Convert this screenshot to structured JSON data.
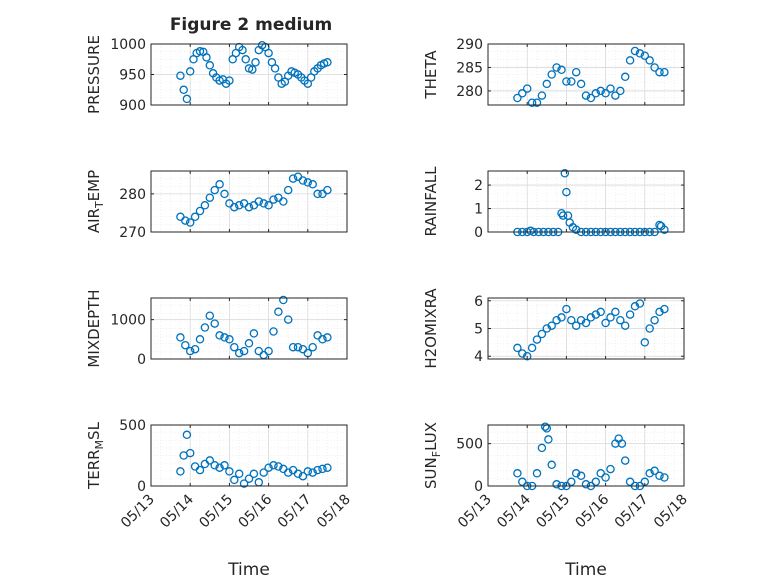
{
  "figure": {
    "title": "Figure 2 medium",
    "xlabel": "Time",
    "x_tick_labels": [
      "05/13",
      "05/14",
      "05/15",
      "05/16",
      "05/17",
      "05/18"
    ]
  },
  "colors": {
    "marker": "#0072BD",
    "axis": "#262626",
    "grid": "#d9d9d9",
    "background": "#ffffff"
  },
  "chart_data": [
    {
      "type": "scatter",
      "ylabel": "PRESSURE",
      "xlim": [
        "05/13",
        "05/18"
      ],
      "ylim": [
        900,
        1000
      ],
      "yticks": [
        900,
        950,
        1000
      ],
      "grid": true,
      "series": [
        {
          "x": [
            "05/13 18:00",
            "05/13 20:00",
            "05/13 22:00",
            "05/14 00:00",
            "05/14 02:00",
            "05/14 04:00",
            "05/14 06:00",
            "05/14 08:00",
            "05/14 10:00",
            "05/14 12:00",
            "05/14 14:00",
            "05/14 16:00",
            "05/14 18:00",
            "05/14 20:00",
            "05/14 22:00",
            "05/15 00:00",
            "05/15 02:00",
            "05/15 04:00",
            "05/15 06:00",
            "05/15 08:00",
            "05/15 10:00",
            "05/15 12:00",
            "05/15 14:00",
            "05/15 16:00",
            "05/15 18:00",
            "05/15 20:00",
            "05/15 22:00",
            "05/16 00:00",
            "05/16 02:00",
            "05/16 04:00",
            "05/16 06:00",
            "05/16 08:00",
            "05/16 10:00",
            "05/16 12:00",
            "05/16 14:00",
            "05/16 16:00",
            "05/16 18:00",
            "05/16 20:00",
            "05/16 22:00",
            "05/17 00:00",
            "05/17 02:00",
            "05/17 04:00",
            "05/17 06:00",
            "05/17 08:00",
            "05/17 10:00",
            "05/17 12:00"
          ],
          "y": [
            948,
            925,
            910,
            955,
            975,
            985,
            988,
            987,
            978,
            965,
            952,
            945,
            940,
            942,
            935,
            940,
            975,
            985,
            995,
            990,
            975,
            960,
            958,
            970,
            990,
            998,
            995,
            985,
            970,
            960,
            945,
            935,
            938,
            948,
            955,
            953,
            950,
            945,
            940,
            935,
            945,
            955,
            960,
            965,
            968,
            970
          ]
        }
      ]
    },
    {
      "type": "scatter",
      "ylabel": "THETA",
      "xlim": [
        "05/13",
        "05/18"
      ],
      "ylim": [
        277,
        290
      ],
      "yticks": [
        280,
        285,
        290
      ],
      "grid": true,
      "series": [
        {
          "x": [
            "05/13 18:00",
            "05/13 21:00",
            "05/14 00:00",
            "05/14 03:00",
            "05/14 06:00",
            "05/14 09:00",
            "05/14 12:00",
            "05/14 15:00",
            "05/14 18:00",
            "05/14 21:00",
            "05/15 00:00",
            "05/15 03:00",
            "05/15 06:00",
            "05/15 09:00",
            "05/15 12:00",
            "05/15 15:00",
            "05/15 18:00",
            "05/15 21:00",
            "05/16 00:00",
            "05/16 03:00",
            "05/16 06:00",
            "05/16 09:00",
            "05/16 12:00",
            "05/16 15:00",
            "05/16 18:00",
            "05/16 21:00",
            "05/17 00:00",
            "05/17 03:00",
            "05/17 06:00",
            "05/17 09:00",
            "05/17 12:00"
          ],
          "y": [
            278.5,
            279.5,
            280.5,
            277.5,
            277.5,
            279,
            281.5,
            283.5,
            285,
            284.5,
            282,
            282,
            284,
            281.5,
            279,
            278.5,
            279.5,
            280,
            279.5,
            280.5,
            279,
            280,
            283,
            286.5,
            288.5,
            288,
            287.5,
            286.5,
            285,
            284,
            284
          ]
        }
      ]
    },
    {
      "type": "scatter",
      "ylabel": "AIR_TEMP",
      "ylabel_main": "AIR",
      "ylabel_sub": "T",
      "ylabel_rest": "EMP",
      "xlim": [
        "05/13",
        "05/18"
      ],
      "ylim": [
        270,
        286
      ],
      "yticks": [
        270,
        280
      ],
      "grid": true,
      "series": [
        {
          "x": [
            "05/13 18:00",
            "05/13 21:00",
            "05/14 00:00",
            "05/14 03:00",
            "05/14 06:00",
            "05/14 09:00",
            "05/14 12:00",
            "05/14 15:00",
            "05/14 18:00",
            "05/14 21:00",
            "05/15 00:00",
            "05/15 03:00",
            "05/15 06:00",
            "05/15 09:00",
            "05/15 12:00",
            "05/15 15:00",
            "05/15 18:00",
            "05/15 21:00",
            "05/16 00:00",
            "05/16 03:00",
            "05/16 06:00",
            "05/16 09:00",
            "05/16 12:00",
            "05/16 15:00",
            "05/16 18:00",
            "05/16 21:00",
            "05/17 00:00",
            "05/17 03:00",
            "05/17 06:00",
            "05/17 09:00",
            "05/17 12:00"
          ],
          "y": [
            274,
            273,
            272.5,
            274,
            275.5,
            277,
            279,
            281,
            282.5,
            280,
            277.5,
            276.5,
            277,
            277.5,
            276.5,
            277,
            278,
            277.5,
            277,
            278.5,
            279,
            278,
            281,
            284,
            284.5,
            283.5,
            283,
            282.5,
            280,
            280,
            281
          ]
        }
      ]
    },
    {
      "type": "scatter",
      "ylabel": "RAINFALL",
      "xlim": [
        "05/13",
        "05/18"
      ],
      "ylim": [
        0,
        2.6
      ],
      "yticks": [
        0,
        1,
        2
      ],
      "grid": true,
      "series": [
        {
          "x": [
            "05/13 18:00",
            "05/13 21:00",
            "05/14 00:00",
            "05/14 02:00",
            "05/14 04:00",
            "05/14 07:00",
            "05/14 10:00",
            "05/14 13:00",
            "05/14 16:00",
            "05/14 19:00",
            "05/14 21:00",
            "05/14 22:00",
            "05/14 23:00",
            "05/15 00:00",
            "05/15 01:00",
            "05/15 02:00",
            "05/15 04:00",
            "05/15 06:00",
            "05/15 09:00",
            "05/15 12:00",
            "05/15 15:00",
            "05/15 18:00",
            "05/15 21:00",
            "05/16 00:00",
            "05/16 03:00",
            "05/16 06:00",
            "05/16 09:00",
            "05/16 12:00",
            "05/16 15:00",
            "05/16 18:00",
            "05/16 21:00",
            "05/17 00:00",
            "05/17 03:00",
            "05/17 06:00",
            "05/17 09:00",
            "05/17 10:00",
            "05/17 12:00"
          ],
          "y": [
            0,
            0,
            0,
            0.05,
            0,
            0,
            0,
            0,
            0,
            0,
            0.8,
            0.7,
            2.5,
            1.7,
            0.7,
            0.4,
            0.2,
            0.1,
            0,
            0,
            0,
            0,
            0,
            0,
            0,
            0,
            0,
            0,
            0,
            0,
            0,
            0,
            0,
            0,
            0.3,
            0.25,
            0.1
          ]
        }
      ]
    },
    {
      "type": "scatter",
      "ylabel": "MIXDEPTH",
      "xlim": [
        "05/13",
        "05/18"
      ],
      "ylim": [
        0,
        1550
      ],
      "yticks": [
        0,
        1000
      ],
      "grid": true,
      "series": [
        {
          "x": [
            "05/13 18:00",
            "05/13 21:00",
            "05/14 00:00",
            "05/14 03:00",
            "05/14 06:00",
            "05/14 09:00",
            "05/14 12:00",
            "05/14 15:00",
            "05/14 18:00",
            "05/14 21:00",
            "05/15 00:00",
            "05/15 03:00",
            "05/15 06:00",
            "05/15 09:00",
            "05/15 12:00",
            "05/15 15:00",
            "05/15 18:00",
            "05/15 21:00",
            "05/16 00:00",
            "05/16 03:00",
            "05/16 06:00",
            "05/16 09:00",
            "05/16 12:00",
            "05/16 15:00",
            "05/16 18:00",
            "05/16 21:00",
            "05/17 00:00",
            "05/17 03:00",
            "05/17 06:00",
            "05/17 09:00",
            "05/17 12:00"
          ],
          "y": [
            550,
            350,
            200,
            250,
            500,
            800,
            1100,
            900,
            600,
            550,
            500,
            300,
            150,
            200,
            400,
            650,
            200,
            100,
            200,
            700,
            1200,
            1500,
            1000,
            300,
            300,
            250,
            150,
            300,
            600,
            500,
            550
          ]
        }
      ]
    },
    {
      "type": "scatter",
      "ylabel": "H2OMIXRA",
      "xlim": [
        "05/13",
        "05/18"
      ],
      "ylim": [
        3.9,
        6.1
      ],
      "yticks": [
        4,
        5,
        6
      ],
      "grid": true,
      "series": [
        {
          "x": [
            "05/13 18:00",
            "05/13 21:00",
            "05/14 00:00",
            "05/14 03:00",
            "05/14 06:00",
            "05/14 09:00",
            "05/14 12:00",
            "05/14 15:00",
            "05/14 18:00",
            "05/14 21:00",
            "05/15 00:00",
            "05/15 03:00",
            "05/15 06:00",
            "05/15 09:00",
            "05/15 12:00",
            "05/15 15:00",
            "05/15 18:00",
            "05/15 21:00",
            "05/16 00:00",
            "05/16 03:00",
            "05/16 06:00",
            "05/16 09:00",
            "05/16 12:00",
            "05/16 15:00",
            "05/16 18:00",
            "05/16 21:00",
            "05/17 00:00",
            "05/17 03:00",
            "05/17 06:00",
            "05/17 09:00",
            "05/17 12:00"
          ],
          "y": [
            4.3,
            4.1,
            4.0,
            4.3,
            4.6,
            4.8,
            5.0,
            5.1,
            5.3,
            5.4,
            5.7,
            5.3,
            5.1,
            5.3,
            5.2,
            5.4,
            5.5,
            5.6,
            5.2,
            5.4,
            5.6,
            5.3,
            5.1,
            5.5,
            5.8,
            5.9,
            4.5,
            5.0,
            5.3,
            5.6,
            5.7
          ]
        }
      ]
    },
    {
      "type": "scatter",
      "ylabel": "TERR_MSL",
      "ylabel_main": "TERR",
      "ylabel_sub": "M",
      "ylabel_rest": "SL",
      "xlim": [
        "05/13",
        "05/18"
      ],
      "ylim": [
        0,
        500
      ],
      "yticks": [
        0,
        500
      ],
      "grid": true,
      "series": [
        {
          "x": [
            "05/13 18:00",
            "05/13 20:00",
            "05/13 22:00",
            "05/14 00:00",
            "05/14 03:00",
            "05/14 06:00",
            "05/14 09:00",
            "05/14 12:00",
            "05/14 15:00",
            "05/14 18:00",
            "05/14 21:00",
            "05/15 00:00",
            "05/15 03:00",
            "05/15 06:00",
            "05/15 09:00",
            "05/15 12:00",
            "05/15 15:00",
            "05/15 18:00",
            "05/15 21:00",
            "05/16 00:00",
            "05/16 03:00",
            "05/16 06:00",
            "05/16 09:00",
            "05/16 12:00",
            "05/16 15:00",
            "05/16 18:00",
            "05/16 21:00",
            "05/17 00:00",
            "05/17 03:00",
            "05/17 06:00",
            "05/17 09:00",
            "05/17 12:00"
          ],
          "y": [
            120,
            250,
            420,
            270,
            160,
            130,
            180,
            210,
            170,
            150,
            170,
            120,
            50,
            100,
            20,
            60,
            100,
            30,
            110,
            150,
            170,
            160,
            140,
            110,
            130,
            100,
            80,
            120,
            110,
            130,
            140,
            150
          ]
        }
      ]
    },
    {
      "type": "scatter",
      "ylabel": "SUN_FLUX",
      "ylabel_main": "SUN",
      "ylabel_sub": "F",
      "ylabel_rest": "LUX",
      "xlim": [
        "05/13",
        "05/18"
      ],
      "ylim": [
        0,
        720
      ],
      "yticks": [
        0,
        500
      ],
      "grid": true,
      "series": [
        {
          "x": [
            "05/13 18:00",
            "05/13 21:00",
            "05/14 00:00",
            "05/14 03:00",
            "05/14 06:00",
            "05/14 09:00",
            "05/14 11:00",
            "05/14 12:00",
            "05/14 13:00",
            "05/14 15:00",
            "05/14 18:00",
            "05/14 21:00",
            "05/15 00:00",
            "05/15 03:00",
            "05/15 06:00",
            "05/15 09:00",
            "05/15 12:00",
            "05/15 15:00",
            "05/15 18:00",
            "05/15 21:00",
            "05/16 00:00",
            "05/16 03:00",
            "05/16 06:00",
            "05/16 08:00",
            "05/16 10:00",
            "05/16 12:00",
            "05/16 15:00",
            "05/16 18:00",
            "05/16 21:00",
            "05/17 00:00",
            "05/17 03:00",
            "05/17 06:00",
            "05/17 09:00",
            "05/17 12:00"
          ],
          "y": [
            150,
            50,
            0,
            0,
            150,
            450,
            700,
            680,
            550,
            250,
            20,
            0,
            0,
            50,
            150,
            120,
            20,
            0,
            50,
            150,
            100,
            200,
            500,
            560,
            500,
            300,
            50,
            0,
            0,
            50,
            150,
            180,
            120,
            100
          ]
        }
      ]
    }
  ]
}
